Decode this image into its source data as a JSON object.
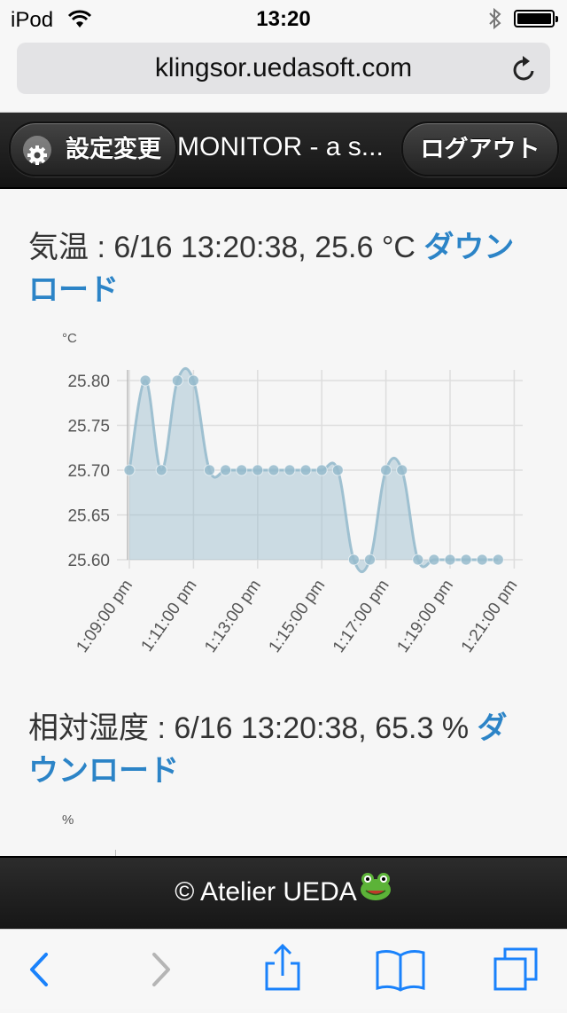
{
  "status_bar": {
    "carrier": "iPod",
    "time": "13:20"
  },
  "browser": {
    "url": "klingsor.uedasoft.com"
  },
  "header": {
    "settings_label": "設定変更",
    "title": "MONITOR - a s...",
    "logout_label": "ログアウト"
  },
  "sections": [
    {
      "title_text": "気温 : 6/16 13:20:38, 25.6 °C ",
      "download_label": "ダウンロード",
      "unit": "°C"
    },
    {
      "title_text": "相対湿度 : 6/16 13:20:38, 65.3 % ",
      "download_label": "ダウンロード",
      "unit": "%"
    }
  ],
  "chart_data": [
    {
      "type": "area",
      "title": "",
      "ylabel": "°C",
      "ylim": [
        25.6,
        25.8
      ],
      "yticks": [
        "25.80",
        "25.75",
        "25.70",
        "25.65",
        "25.60"
      ],
      "xticks": [
        "1:09:00 pm",
        "1:11:00 pm",
        "1:13:00 pm",
        "1:15:00 pm",
        "1:17:00 pm",
        "1:19:00 pm",
        "1:21:00 pm"
      ],
      "x_minutes_from_1_09": [
        0,
        0.5,
        1,
        1.5,
        2,
        2.5,
        3,
        3.5,
        4,
        4.5,
        5,
        5.5,
        6,
        6.5,
        7,
        7.5,
        8,
        8.5,
        9,
        9.5,
        10,
        10.5,
        11,
        11.5
      ],
      "values": [
        25.7,
        25.8,
        25.7,
        25.8,
        25.8,
        25.7,
        25.7,
        25.7,
        25.7,
        25.7,
        25.7,
        25.7,
        25.7,
        25.7,
        25.6,
        25.6,
        25.7,
        25.7,
        25.6,
        25.6,
        25.6,
        25.6,
        25.6,
        25.6
      ],
      "grid": true,
      "color": "#9fc3d6"
    }
  ],
  "footer": {
    "text": "© Atelier UEDA"
  },
  "colors": {
    "accent": "#2c84c7",
    "ios_blue": "#1a82fb"
  }
}
